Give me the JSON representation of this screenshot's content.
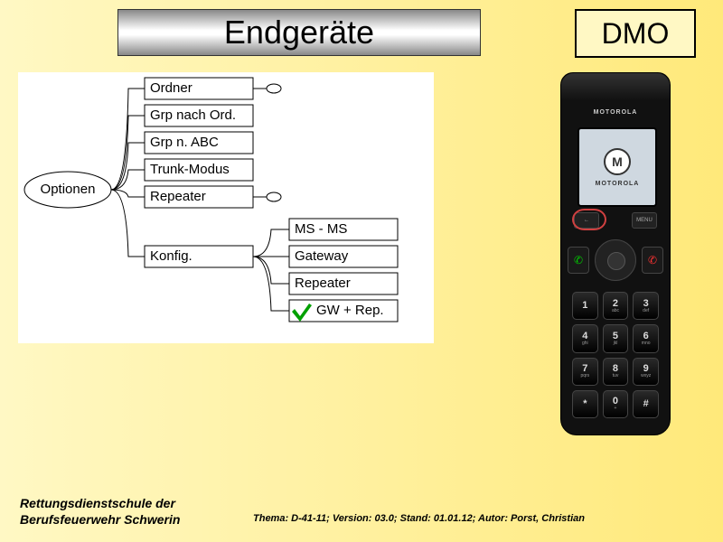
{
  "title": "Endgeräte",
  "badge": "DMO",
  "options_root": "Optionen",
  "main_items": [
    "Ordner",
    "Grp nach Ord.",
    "Grp n. ABC",
    "Trunk-Modus",
    "Repeater",
    "Konfig."
  ],
  "konfig_children": [
    "MS - MS",
    "Gateway",
    "Repeater",
    "GW + Rep."
  ],
  "checked_child_index": 3,
  "phone": {
    "brand": "MOTOROLA",
    "screen_logo": "M",
    "screen_text": "MOTOROLA",
    "softkey_left": "←",
    "softkey_right": "MENU",
    "keys": [
      {
        "n": "1",
        "s": ""
      },
      {
        "n": "2",
        "s": "abc"
      },
      {
        "n": "3",
        "s": "def"
      },
      {
        "n": "4",
        "s": "ghi"
      },
      {
        "n": "5",
        "s": "jkl"
      },
      {
        "n": "6",
        "s": "mno"
      },
      {
        "n": "7",
        "s": "pqrs"
      },
      {
        "n": "8",
        "s": "tuv"
      },
      {
        "n": "9",
        "s": "wxyz"
      },
      {
        "n": "*",
        "s": ""
      },
      {
        "n": "0",
        "s": "+"
      },
      {
        "n": "#",
        "s": ""
      }
    ]
  },
  "footer": {
    "org_line1": "Rettungsdienstschule der",
    "org_line2": "Berufsfeuerwehr Schwerin",
    "meta": "Thema: D-41-11; Version: 03.0; Stand: 01.01.12; Autor: Porst, Christian"
  },
  "style": {
    "background_gradient": [
      "#fff8c4",
      "#ffe97a"
    ],
    "title_bar_gradient": [
      "#888",
      "#fff",
      "#888"
    ],
    "title_fontsize": 36,
    "dmo_fontsize": 32,
    "diagram_fontsize": 15,
    "check_color": "#00a000",
    "highlight_color": "#d04040"
  }
}
